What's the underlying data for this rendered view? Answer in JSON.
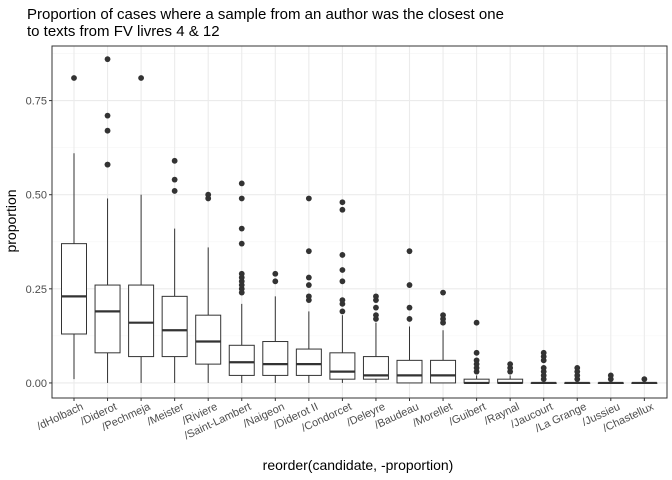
{
  "chart_data": {
    "type": "boxplot",
    "title_lines": [
      "Proportion of cases where a sample from an author was the closest one",
      "to texts from FV livres 4 & 12"
    ],
    "xlabel": "reorder(candidate, -proportion)",
    "ylabel": "proportion",
    "ylim": [
      -0.04,
      0.895
    ],
    "yticks": [
      0.0,
      0.25,
      0.5,
      0.75
    ],
    "ytick_labels": [
      "0.00",
      "0.25",
      "0.50",
      "0.75"
    ],
    "grid": true,
    "categories": [
      "/dHolbach",
      "/Diderot",
      "/Pechmeja",
      "/Meister",
      "/Riviere",
      "/Saint-Lambert",
      "/Naigeon",
      "/Diderot II",
      "/Condorcet",
      "/Deleyre",
      "/Baudeau",
      "/Morellet",
      "/Guibert",
      "/Raynal",
      "/Jaucourt",
      "/La Grange",
      "/Jussieu",
      "/Chastellux"
    ],
    "boxes": [
      {
        "whisker_low": 0.01,
        "q1": 0.13,
        "median": 0.23,
        "q3": 0.37,
        "whisker_high": 0.61,
        "outliers": [
          0.81
        ]
      },
      {
        "whisker_low": 0.0,
        "q1": 0.08,
        "median": 0.19,
        "q3": 0.26,
        "whisker_high": 0.49,
        "outliers": [
          0.58,
          0.58,
          0.67,
          0.71,
          0.86
        ]
      },
      {
        "whisker_low": 0.0,
        "q1": 0.07,
        "median": 0.16,
        "q3": 0.26,
        "whisker_high": 0.5,
        "outliers": [
          0.81
        ]
      },
      {
        "whisker_low": 0.0,
        "q1": 0.07,
        "median": 0.14,
        "q3": 0.23,
        "whisker_high": 0.41,
        "outliers": [
          0.51,
          0.54,
          0.59
        ]
      },
      {
        "whisker_low": 0.0,
        "q1": 0.05,
        "median": 0.11,
        "q3": 0.18,
        "whisker_high": 0.36,
        "outliers": [
          0.49,
          0.5
        ]
      },
      {
        "whisker_low": 0.0,
        "q1": 0.02,
        "median": 0.055,
        "q3": 0.1,
        "whisker_high": 0.21,
        "outliers": [
          0.24,
          0.25,
          0.26,
          0.27,
          0.28,
          0.29,
          0.37,
          0.41,
          0.49,
          0.53
        ]
      },
      {
        "whisker_low": 0.0,
        "q1": 0.02,
        "median": 0.05,
        "q3": 0.11,
        "whisker_high": 0.23,
        "outliers": [
          0.27,
          0.29
        ]
      },
      {
        "whisker_low": 0.0,
        "q1": 0.02,
        "median": 0.05,
        "q3": 0.09,
        "whisker_high": 0.19,
        "outliers": [
          0.22,
          0.23,
          0.26,
          0.28,
          0.35,
          0.49
        ]
      },
      {
        "whisker_low": 0.0,
        "q1": 0.01,
        "median": 0.03,
        "q3": 0.08,
        "whisker_high": 0.18,
        "outliers": [
          0.19,
          0.21,
          0.22,
          0.27,
          0.3,
          0.34,
          0.46,
          0.48
        ]
      },
      {
        "whisker_low": 0.0,
        "q1": 0.01,
        "median": 0.02,
        "q3": 0.07,
        "whisker_high": 0.16,
        "outliers": [
          0.17,
          0.18,
          0.2,
          0.22,
          0.23
        ]
      },
      {
        "whisker_low": 0.0,
        "q1": 0.0,
        "median": 0.02,
        "q3": 0.06,
        "whisker_high": 0.15,
        "outliers": [
          0.17,
          0.2,
          0.26,
          0.35
        ]
      },
      {
        "whisker_low": 0.0,
        "q1": 0.0,
        "median": 0.02,
        "q3": 0.06,
        "whisker_high": 0.14,
        "outliers": [
          0.16,
          0.17,
          0.18,
          0.24
        ]
      },
      {
        "whisker_low": 0.0,
        "q1": 0.0,
        "median": 0.0,
        "q3": 0.01,
        "whisker_high": 0.02,
        "outliers": [
          0.03,
          0.04,
          0.05,
          0.06,
          0.08,
          0.16
        ]
      },
      {
        "whisker_low": 0.0,
        "q1": 0.0,
        "median": 0.0,
        "q3": 0.01,
        "whisker_high": 0.02,
        "outliers": [
          0.03,
          0.04,
          0.05
        ]
      },
      {
        "whisker_low": 0.0,
        "q1": 0.0,
        "median": 0.0,
        "q3": 0.0,
        "whisker_high": 0.0,
        "outliers": [
          0.01,
          0.02,
          0.03,
          0.04,
          0.06,
          0.07,
          0.08
        ]
      },
      {
        "whisker_low": 0.0,
        "q1": 0.0,
        "median": 0.0,
        "q3": 0.0,
        "whisker_high": 0.0,
        "outliers": [
          0.01,
          0.02,
          0.03,
          0.04
        ]
      },
      {
        "whisker_low": 0.0,
        "q1": 0.0,
        "median": 0.0,
        "q3": 0.0,
        "whisker_high": 0.0,
        "outliers": [
          0.01,
          0.02
        ]
      },
      {
        "whisker_low": 0.0,
        "q1": 0.0,
        "median": 0.0,
        "q3": 0.0,
        "whisker_high": 0.0,
        "outliers": [
          0.01
        ]
      }
    ],
    "colors": {
      "box_fill": "#ffffff",
      "box_stroke": "#333333",
      "point": "#333333",
      "grid_major": "#ebebeb",
      "grid_minor": "#f5f5f5",
      "panel_border": "#333333"
    }
  }
}
